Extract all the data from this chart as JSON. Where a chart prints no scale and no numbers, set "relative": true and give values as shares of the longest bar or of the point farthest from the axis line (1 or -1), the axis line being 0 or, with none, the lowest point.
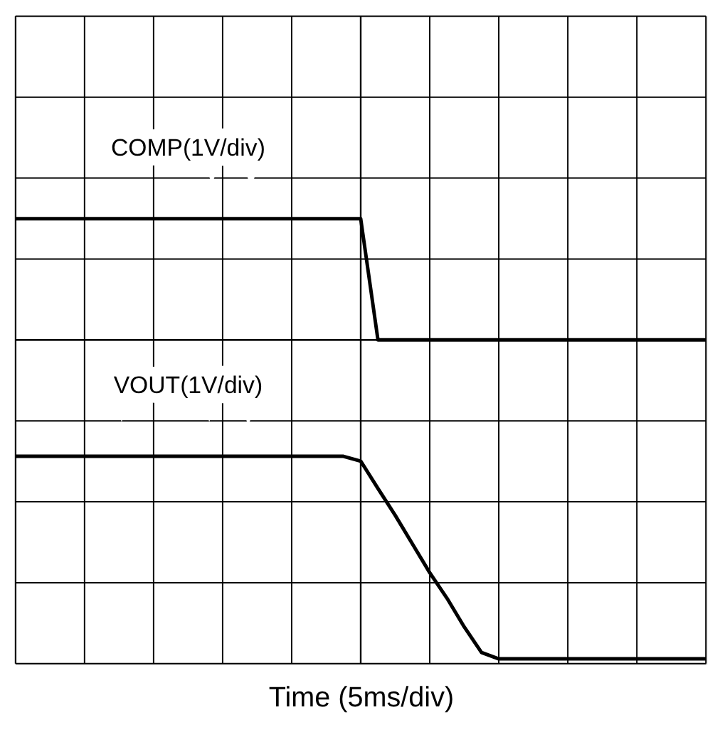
{
  "chart_data": {
    "type": "line",
    "relative": true,
    "xlabel": "Time (5ms/div)",
    "grid": true,
    "marker": "none",
    "line_style": "solid",
    "tick_labels": false,
    "categories": [
      null,
      null,
      null,
      null,
      null,
      null,
      null,
      null,
      null,
      null,
      null,
      null,
      null,
      null,
      null,
      null,
      null,
      null,
      null,
      null,
      null,
      null,
      null,
      null,
      null,
      null,
      null,
      null,
      null,
      null,
      null,
      null,
      null,
      null,
      null,
      null,
      null,
      null,
      null,
      null,
      null
    ],
    "series": [
      {
        "name": "COMP(1V/div)",
        "color": "#000000",
        "values": [
          0.38,
          0.38,
          0.38,
          0.38,
          0.38,
          0.38,
          0.38,
          0.38,
          0.38,
          0.38,
          0.38,
          0.38,
          0.38,
          0.38,
          0.38,
          0.38,
          0.38,
          0.38,
          0.38,
          0.38,
          0.38,
          0,
          0,
          0,
          0,
          0,
          0,
          0,
          0,
          0,
          0,
          0,
          0,
          0,
          0,
          0,
          0,
          0,
          0,
          0,
          0
        ]
      },
      {
        "name": "VOUT(1V/div)",
        "color": "#000000",
        "values": [
          -0.365,
          -0.365,
          -0.365,
          -0.365,
          -0.365,
          -0.365,
          -0.365,
          -0.365,
          -0.365,
          -0.365,
          -0.365,
          -0.365,
          -0.365,
          -0.365,
          -0.365,
          -0.365,
          -0.365,
          -0.365,
          -0.365,
          -0.365,
          -0.38,
          -0.466,
          -0.55,
          -0.64,
          -0.73,
          -0.81,
          -0.9,
          -0.98,
          -1,
          -1,
          -1,
          -1,
          -1,
          -1,
          -1,
          -1,
          -1,
          -1,
          -1,
          -1,
          -1
        ]
      }
    ]
  }
}
